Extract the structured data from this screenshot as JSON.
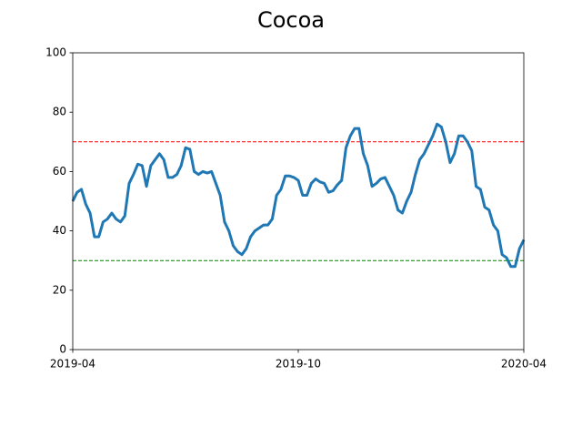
{
  "chart_data": {
    "type": "line",
    "title": "Cocoa",
    "categories": [
      "2019-04",
      null,
      null,
      null,
      null,
      null,
      null,
      null,
      null,
      null,
      null,
      null,
      null,
      null,
      null,
      null,
      null,
      null,
      null,
      null,
      null,
      null,
      null,
      null,
      null,
      null,
      null,
      null,
      null,
      null,
      null,
      null,
      null,
      null,
      null,
      null,
      null,
      null,
      null,
      null,
      null,
      null,
      null,
      null,
      null,
      null,
      null,
      null,
      null,
      null,
      null,
      null,
      "2019-10",
      null,
      null,
      null,
      null,
      null,
      null,
      null,
      null,
      null,
      null,
      null,
      null,
      null,
      null,
      null,
      null,
      null,
      null,
      null,
      null,
      null,
      null,
      null,
      null,
      null,
      null,
      null,
      null,
      null,
      null,
      null,
      null,
      null,
      null,
      null,
      null,
      null,
      null,
      null,
      null,
      null,
      null,
      null,
      null,
      null,
      null,
      null,
      null,
      null,
      null,
      null,
      "2020-04"
    ],
    "values": [
      50,
      53,
      54,
      49,
      46,
      38,
      38,
      43,
      44,
      46,
      44,
      43,
      45,
      56,
      59,
      62.5,
      62,
      55,
      62,
      64,
      66,
      64,
      58,
      58,
      59,
      62,
      68,
      67.5,
      60,
      59,
      60,
      59.5,
      60,
      56,
      52,
      43,
      40,
      35,
      33,
      32,
      34,
      38,
      40,
      41,
      42,
      42,
      44,
      52,
      54,
      58.5,
      58.5,
      58,
      57,
      52,
      52,
      56,
      57.5,
      56.5,
      56,
      53,
      53.5,
      55.5,
      57,
      68,
      72,
      74.5,
      74.5,
      66,
      62,
      55,
      56,
      57.5,
      58,
      55,
      52,
      47,
      46,
      50,
      53,
      59,
      64,
      66,
      69,
      72,
      76,
      75,
      70,
      63,
      66,
      72,
      72,
      70,
      67,
      55,
      54,
      48,
      47,
      42,
      40,
      32,
      31,
      28,
      28,
      34,
      37
    ],
    "color": "#1f77b4",
    "ylim": [
      0,
      100
    ],
    "yticks": [
      0,
      20,
      40,
      60,
      80,
      100
    ],
    "reference_lines": [
      {
        "value": 70,
        "color": "#ff0000"
      },
      {
        "value": 30,
        "color": "#008000"
      }
    ]
  }
}
